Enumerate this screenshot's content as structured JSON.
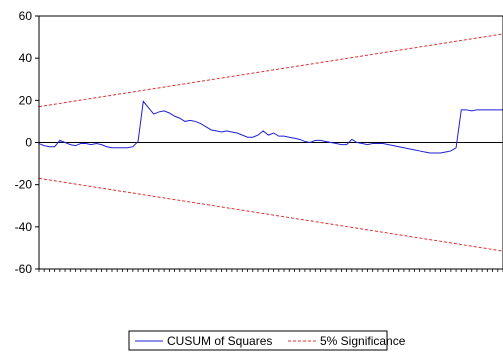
{
  "chart_data": {
    "type": "line",
    "ylim": [
      -60,
      60
    ],
    "yticks": [
      -60,
      -40,
      -20,
      0,
      20,
      40,
      60
    ],
    "x_count": 90,
    "zero_line": true,
    "grid": false,
    "legend_position": "bottom-center",
    "series": [
      {
        "name": "CUSUM of Squares",
        "color": "#1f1fd6",
        "style": "solid",
        "x": [
          0,
          1,
          2,
          3,
          4,
          5,
          6,
          7,
          8,
          9,
          10,
          11,
          12,
          13,
          14,
          15,
          16,
          17,
          18,
          19,
          20,
          21,
          22,
          23,
          24,
          25,
          26,
          27,
          28,
          29,
          30,
          31,
          32,
          33,
          34,
          35,
          36,
          37,
          38,
          39,
          40,
          41,
          42,
          43,
          44,
          45,
          46,
          47,
          48,
          49,
          50,
          51,
          52,
          53,
          54,
          55,
          56,
          57,
          58,
          59,
          60,
          61,
          62,
          63,
          64,
          65,
          66,
          67,
          68,
          69,
          70,
          71,
          72,
          73,
          74,
          75,
          76,
          77,
          78,
          79,
          80,
          81,
          82,
          83,
          84,
          85,
          86,
          87,
          88,
          89
        ],
        "values": [
          -0.5,
          -1.5,
          -2.0,
          -2.0,
          1.0,
          0.0,
          -1.0,
          -1.5,
          -0.5,
          -0.5,
          -1.0,
          -0.5,
          -1.0,
          -2.0,
          -2.5,
          -2.5,
          -2.5,
          -2.5,
          -2.0,
          0.5,
          19.5,
          16.5,
          13.5,
          14.5,
          15.0,
          14.0,
          12.5,
          11.5,
          10.0,
          10.5,
          10.0,
          9.0,
          7.5,
          6.0,
          5.5,
          5.0,
          5.5,
          5.0,
          4.5,
          3.5,
          2.5,
          2.5,
          3.5,
          5.5,
          3.5,
          4.5,
          3.0,
          3.0,
          2.5,
          2.0,
          1.5,
          0.5,
          0.0,
          1.0,
          1.0,
          0.5,
          0.0,
          -0.5,
          -1.0,
          -1.0,
          1.5,
          0.0,
          -0.5,
          -1.0,
          -0.5,
          -0.5,
          -0.5,
          -1.0,
          -1.5,
          -2.0,
          -2.5,
          -3.0,
          -3.5,
          -4.0,
          -4.5,
          -5.0,
          -5.0,
          -5.0,
          -4.5,
          -4.0,
          -2.5,
          15.5,
          15.5,
          15.0,
          15.5,
          15.5,
          15.5,
          15.5,
          15.5,
          15.5
        ]
      },
      {
        "name": "5% Significance",
        "color": "#e03030",
        "style": "dashed",
        "bands": [
          {
            "x": [
              0,
              89
            ],
            "values": [
              17.0,
              51.5
            ]
          },
          {
            "x": [
              0,
              89
            ],
            "values": [
              -17.0,
              -51.5
            ]
          }
        ]
      }
    ]
  }
}
